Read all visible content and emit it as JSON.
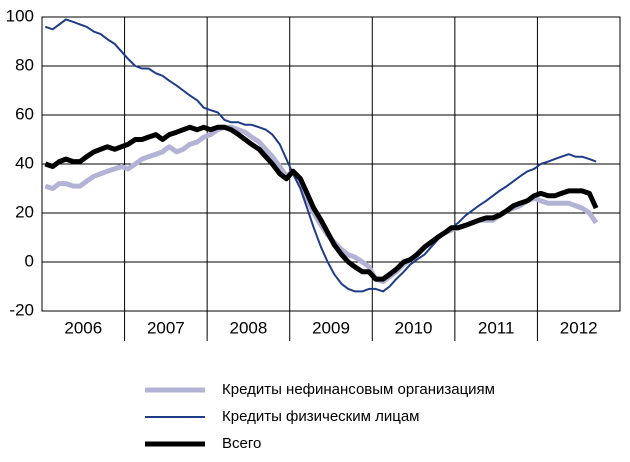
{
  "chart_data": {
    "type": "line",
    "categories": [
      "2006",
      "2007",
      "2008",
      "2009",
      "2010",
      "2011",
      "2012"
    ],
    "x": [
      2006.04,
      2006.13,
      2006.21,
      2006.29,
      2006.38,
      2006.46,
      2006.54,
      2006.63,
      2006.71,
      2006.79,
      2006.88,
      2006.96,
      2007.04,
      2007.13,
      2007.21,
      2007.29,
      2007.38,
      2007.46,
      2007.54,
      2007.63,
      2007.71,
      2007.79,
      2007.88,
      2007.96,
      2008.04,
      2008.13,
      2008.21,
      2008.29,
      2008.38,
      2008.46,
      2008.54,
      2008.63,
      2008.71,
      2008.79,
      2008.88,
      2008.96,
      2009.04,
      2009.13,
      2009.21,
      2009.29,
      2009.38,
      2009.46,
      2009.54,
      2009.63,
      2009.71,
      2009.79,
      2009.88,
      2009.96,
      2010.04,
      2010.13,
      2010.21,
      2010.29,
      2010.38,
      2010.46,
      2010.54,
      2010.63,
      2010.71,
      2010.79,
      2010.88,
      2010.96,
      2011.04,
      2011.13,
      2011.21,
      2011.29,
      2011.38,
      2011.46,
      2011.54,
      2011.63,
      2011.71,
      2011.79,
      2011.88,
      2011.96,
      2012.04,
      2012.13,
      2012.21,
      2012.29,
      2012.38,
      2012.46,
      2012.54,
      2012.63,
      2012.71
    ],
    "series": [
      {
        "name": "Кредиты нефинансовым организациям",
        "color": "#b3b3d6",
        "width": 5,
        "values": [
          31,
          30,
          32,
          32,
          31,
          31,
          33,
          35,
          36,
          37,
          38,
          39,
          38,
          40,
          42,
          43,
          44,
          45,
          47,
          45,
          46,
          48,
          49,
          51,
          52,
          54,
          55,
          55,
          54,
          53,
          51,
          49,
          46,
          43,
          39,
          35,
          37,
          33,
          26,
          20,
          15,
          11,
          8,
          5,
          3,
          2,
          0,
          -2,
          -7,
          -8,
          -6,
          -4,
          -1,
          1,
          3,
          6,
          8,
          10,
          12,
          13,
          14,
          15,
          16,
          17,
          17,
          17,
          19,
          21,
          22,
          23,
          25,
          26,
          25,
          24,
          24,
          24,
          24,
          23,
          22,
          20,
          16
        ]
      },
      {
        "name": "Кредиты физическим лицам",
        "color": "#1f3c88",
        "width": 2,
        "values": [
          96,
          95,
          97,
          99,
          98,
          97,
          96,
          94,
          93,
          91,
          89,
          86,
          83,
          80,
          79,
          79,
          77,
          76,
          74,
          72,
          70,
          68,
          66,
          63,
          62,
          61,
          58,
          57,
          57,
          56,
          56,
          55,
          54,
          52,
          48,
          42,
          36,
          30,
          22,
          14,
          6,
          0,
          -5,
          -9,
          -11,
          -12,
          -12,
          -11,
          -11,
          -12,
          -10,
          -7,
          -4,
          -1,
          1,
          3,
          6,
          9,
          12,
          14,
          16,
          19,
          21,
          23,
          25,
          27,
          29,
          31,
          33,
          35,
          37,
          38,
          40,
          41,
          42,
          43,
          44,
          43,
          43,
          42,
          41
        ]
      },
      {
        "name": "Всего",
        "color": "#000000",
        "width": 5,
        "values": [
          40,
          39,
          41,
          42,
          41,
          41,
          43,
          45,
          46,
          47,
          46,
          47,
          48,
          50,
          50,
          51,
          52,
          50,
          52,
          53,
          54,
          55,
          54,
          55,
          54,
          55,
          55,
          54,
          52,
          50,
          48,
          46,
          43,
          40,
          36,
          34,
          37,
          34,
          28,
          22,
          17,
          12,
          7,
          3,
          0,
          -2,
          -4,
          -4,
          -7,
          -7,
          -5,
          -3,
          0,
          1,
          3,
          6,
          8,
          10,
          12,
          14,
          14,
          15,
          16,
          17,
          18,
          18,
          19,
          21,
          23,
          24,
          25,
          27,
          28,
          27,
          27,
          28,
          29,
          29,
          29,
          28,
          22
        ]
      }
    ],
    "xlim": [
      2006,
      2013
    ],
    "ylim": [
      -20,
      100
    ],
    "yticks": [
      -20,
      0,
      20,
      40,
      60,
      80,
      100
    ],
    "grid": true
  }
}
